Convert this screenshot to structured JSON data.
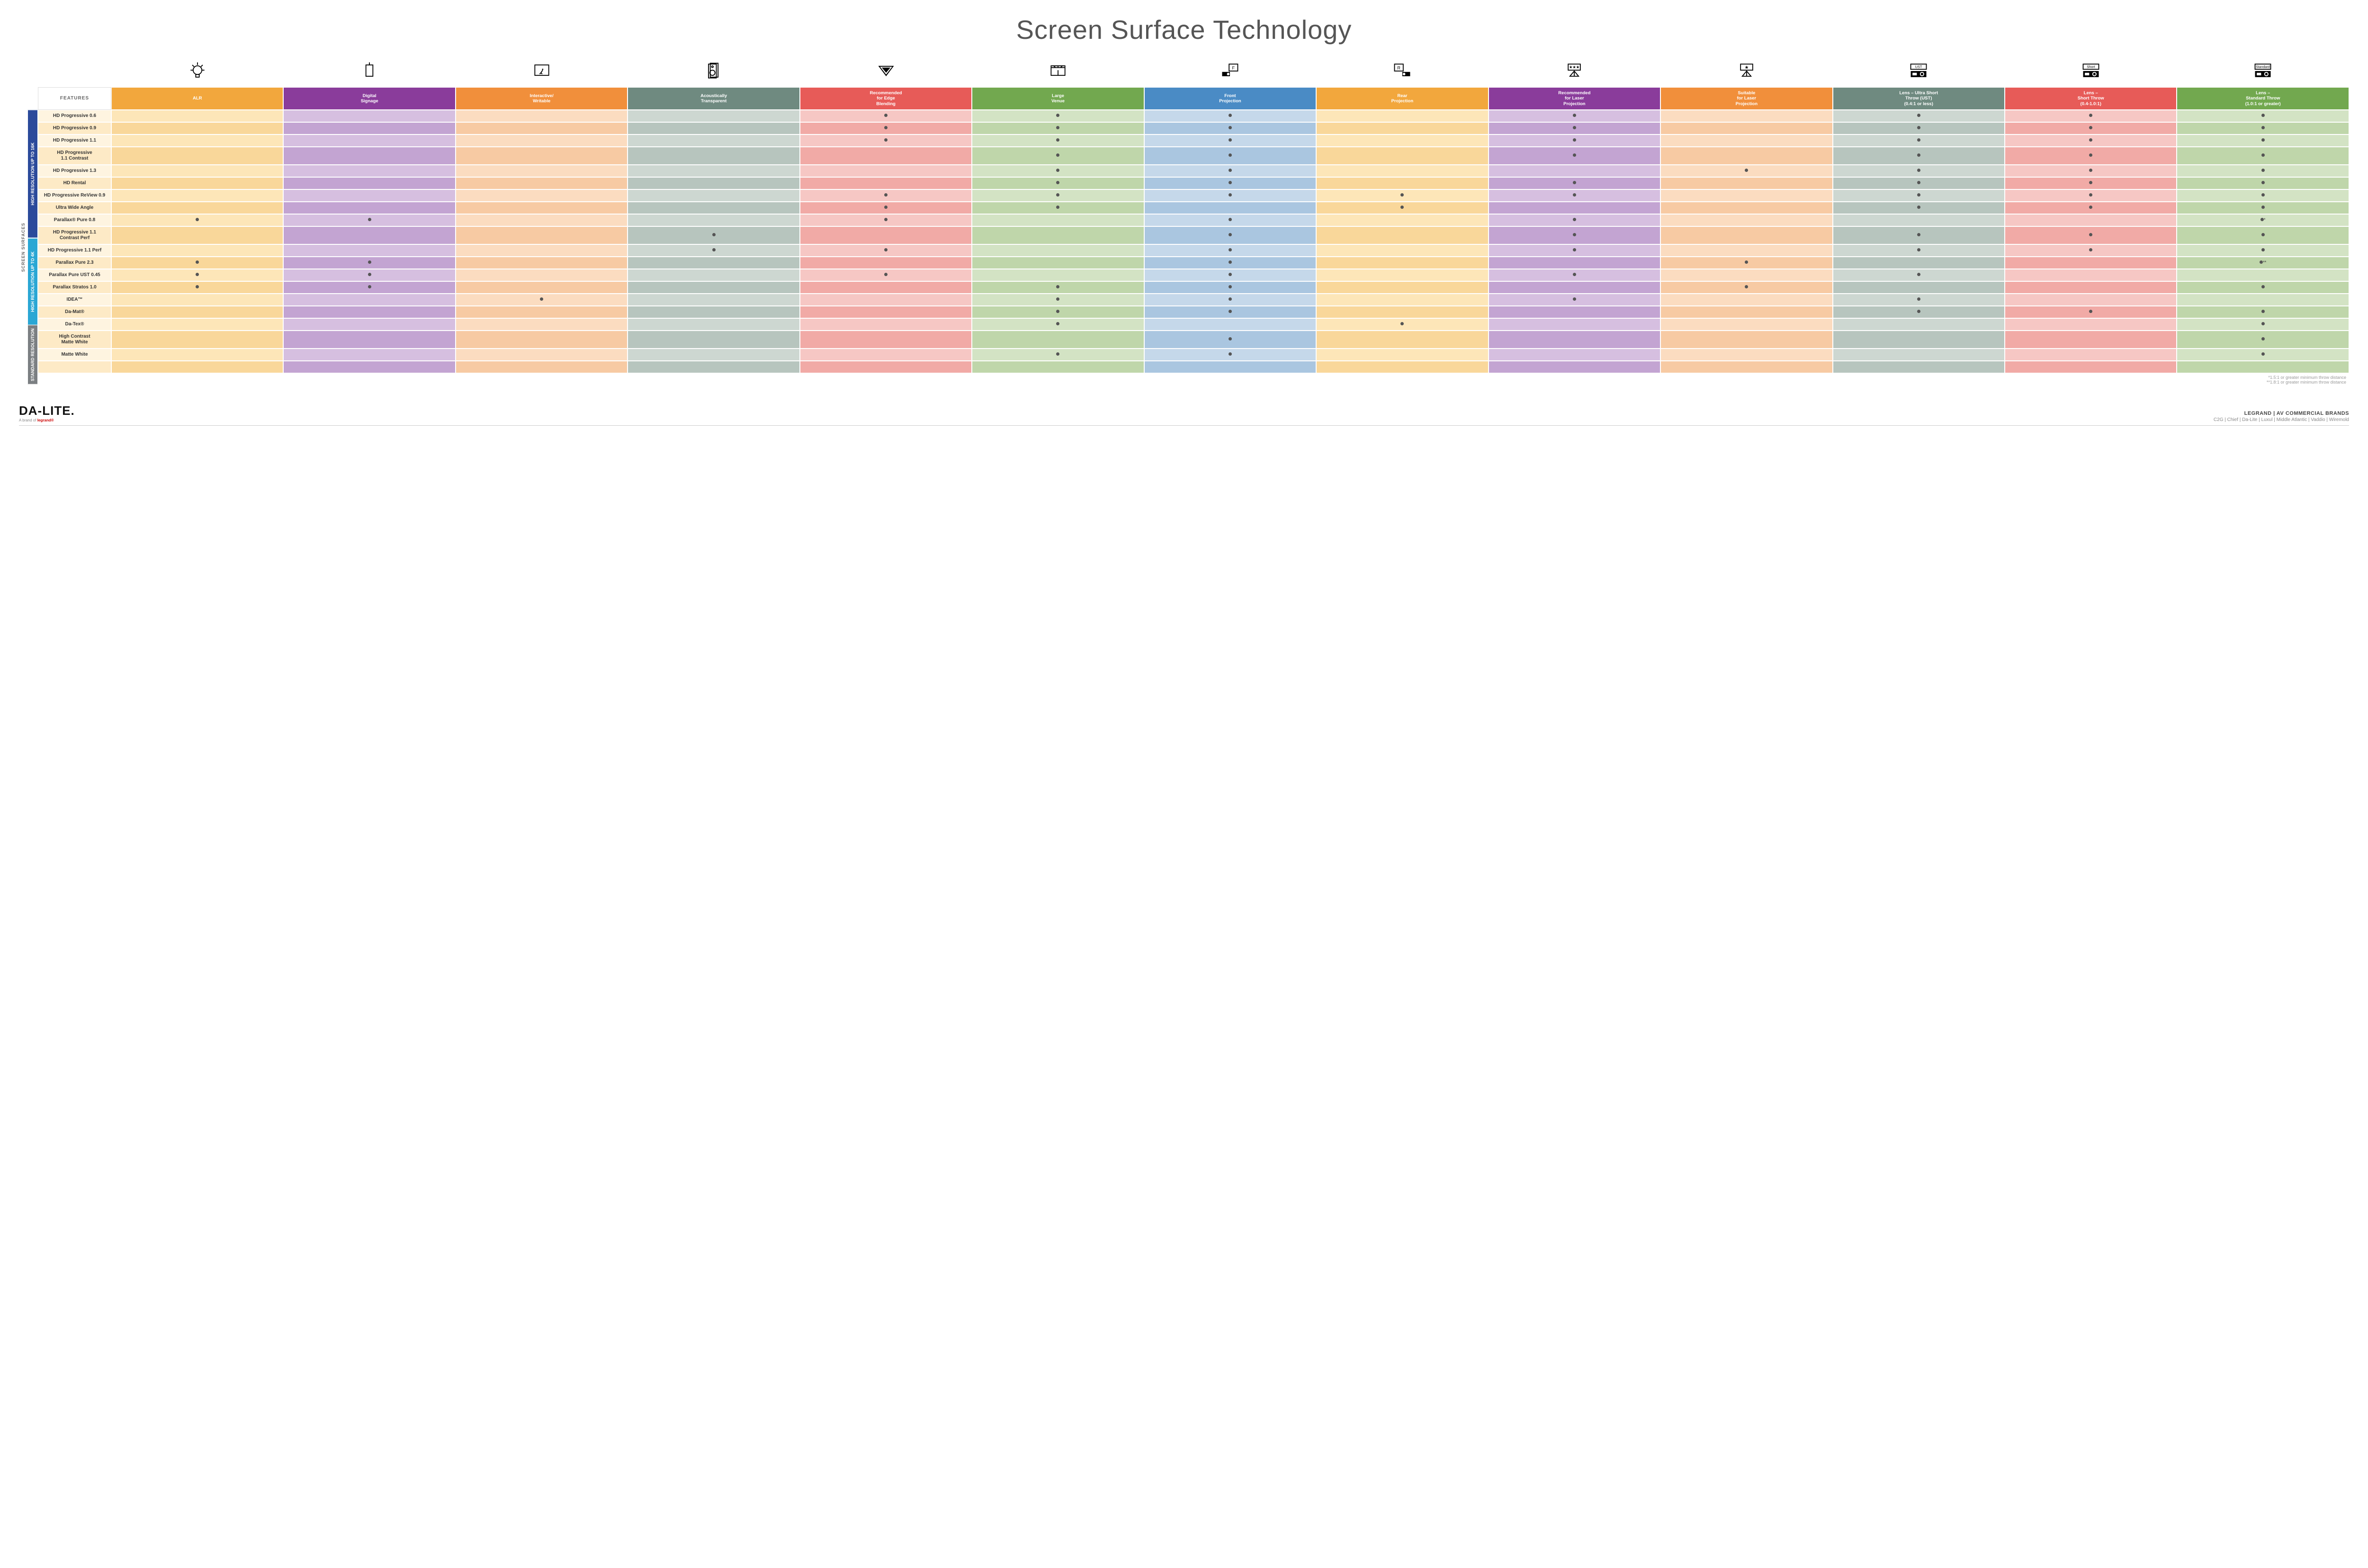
{
  "title": "Screen Surface Technology",
  "features_label": "FEATURES",
  "side_label_outer": "SCREEN SURFACES",
  "columns": [
    {
      "key": "alr",
      "label": "ALR",
      "color": "#f2a73d"
    },
    {
      "key": "digsig",
      "label": "Digital\nSignage",
      "color": "#8a3c9b"
    },
    {
      "key": "interactive",
      "label": "Interactive/\nWritable",
      "color": "#f18f3b"
    },
    {
      "key": "acoustic",
      "label": "Acoustically\nTransparent",
      "color": "#6f8a80"
    },
    {
      "key": "edge",
      "label": "Recommended\nfor Edge\nBlending",
      "color": "#e75b58"
    },
    {
      "key": "large",
      "label": "Large\nVenue",
      "color": "#72a84f"
    },
    {
      "key": "front",
      "label": "Front\nProjection",
      "color": "#4a8bc5"
    },
    {
      "key": "rear",
      "label": "Rear\nProjection",
      "color": "#f2a73d"
    },
    {
      "key": "reclaser",
      "label": "Recommended\nfor Laser\nProjection",
      "color": "#8a3c9b"
    },
    {
      "key": "suitlaser",
      "label": "Suitable\nfor Laser\nProjection",
      "color": "#f18f3b"
    },
    {
      "key": "ust",
      "label": "Lens – Ultra Short\nThrow (UST)\n(0.4:1 or less)",
      "color": "#6f8a80"
    },
    {
      "key": "short",
      "label": "Lens –\nShort Throw\n(0.4-1.0:1)",
      "color": "#e75b58"
    },
    {
      "key": "std",
      "label": "Lens –\nStandard Throw\n(1.0:1 or greater)",
      "color": "#72a84f"
    }
  ],
  "column_tints": {
    "alr": [
      "#fde6b8",
      "#f9d79a"
    ],
    "digsig": [
      "#d6bfe0",
      "#c3a4d2"
    ],
    "interactive": [
      "#fbdcc0",
      "#f7caa3"
    ],
    "acoustic": [
      "#cdd7d1",
      "#b7c5be"
    ],
    "edge": [
      "#f6c7c4",
      "#f1aaa6"
    ],
    "large": [
      "#d3e3c4",
      "#bfd6aa"
    ],
    "front": [
      "#c5d8ea",
      "#aac6e0"
    ],
    "rear": [
      "#fde6b8",
      "#f9d79a"
    ],
    "reclaser": [
      "#d6bfe0",
      "#c3a4d2"
    ],
    "suitlaser": [
      "#fbdcc0",
      "#f7caa3"
    ],
    "ust": [
      "#cdd7d1",
      "#b7c5be"
    ],
    "short": [
      "#f6c7c4",
      "#f1aaa6"
    ],
    "std": [
      "#d3e3c4",
      "#bfd6aa"
    ]
  },
  "row_label_tints": [
    "#fef4e0",
    "#fdeac6"
  ],
  "groups": [
    {
      "label": "HIGH RESOLUTION UP TO 16K",
      "color": "#2b4a9b",
      "rows": [
        {
          "name": "HD Progressive 0.6",
          "dots": {
            "edge": "•",
            "large": "•",
            "front": "•",
            "reclaser": "•",
            "ust": "•",
            "short": "•",
            "std": "•"
          }
        },
        {
          "name": "HD Progressive 0.9",
          "dots": {
            "edge": "•",
            "large": "•",
            "front": "•",
            "reclaser": "•",
            "ust": "•",
            "short": "•",
            "std": "•"
          }
        },
        {
          "name": "HD Progressive 1.1",
          "dots": {
            "edge": "•",
            "large": "•",
            "front": "•",
            "reclaser": "•",
            "ust": "•",
            "short": "•",
            "std": "•"
          }
        },
        {
          "name": "HD Progressive\n1.1 Contrast",
          "dots": {
            "large": "•",
            "front": "•",
            "reclaser": "•",
            "ust": "•",
            "short": "•",
            "std": "•"
          }
        },
        {
          "name": "HD Progressive 1.3",
          "dots": {
            "large": "•",
            "front": "•",
            "suitlaser": "•",
            "ust": "•",
            "short": "•",
            "std": "•"
          }
        },
        {
          "name": "HD Rental",
          "dots": {
            "large": "•",
            "front": "•",
            "reclaser": "•",
            "ust": "•",
            "short": "•",
            "std": "•"
          }
        },
        {
          "name": "HD Progressive ReView 0.9",
          "dots": {
            "edge": "•",
            "large": "•",
            "front": "•",
            "rear": "•",
            "reclaser": "•",
            "ust": "•",
            "short": "•",
            "std": "•"
          }
        },
        {
          "name": "Ultra Wide Angle",
          "dots": {
            "edge": "•",
            "large": "•",
            "rear": "•",
            "ust": "•",
            "short": "•",
            "std": "•"
          }
        },
        {
          "name": "Parallax® Pure 0.8",
          "dots": {
            "alr": "•",
            "digsig": "•",
            "edge": "•",
            "front": "•",
            "reclaser": "•",
            "std": "•*"
          }
        }
      ]
    },
    {
      "label": "HIGH RESOLUTION UP TO 4K",
      "color": "#2aa7d4",
      "rows": [
        {
          "name": "HD Progressive 1.1\nContrast Perf",
          "dots": {
            "acoustic": "•",
            "front": "•",
            "reclaser": "•",
            "ust": "•",
            "short": "•",
            "std": "•"
          }
        },
        {
          "name": "HD Progressive 1.1 Perf",
          "dots": {
            "acoustic": "•",
            "edge": "•",
            "front": "•",
            "reclaser": "•",
            "ust": "•",
            "short": "•",
            "std": "•"
          }
        },
        {
          "name": "Parallax Pure 2.3",
          "dots": {
            "alr": "•",
            "digsig": "•",
            "front": "•",
            "suitlaser": "•",
            "std": "•**"
          }
        },
        {
          "name": "Parallax Pure UST 0.45",
          "dots": {
            "alr": "•",
            "digsig": "•",
            "edge": "•",
            "front": "•",
            "reclaser": "•",
            "ust": "•"
          }
        },
        {
          "name": "Parallax Stratos 1.0",
          "dots": {
            "alr": "•",
            "digsig": "•",
            "large": "•",
            "front": "•",
            "suitlaser": "•",
            "std": "•"
          }
        },
        {
          "name": "IDEA™",
          "dots": {
            "interactive": "•",
            "large": "•",
            "front": "•",
            "reclaser": "•",
            "ust": "•"
          }
        }
      ]
    },
    {
      "label": "STANDARD\nRESOLUTION",
      "color": "#7b7f82",
      "rows": [
        {
          "name": "Da-Mat®",
          "dots": {
            "large": "•",
            "front": "•",
            "ust": "•",
            "short": "•",
            "std": "•"
          }
        },
        {
          "name": "Da-Tex®",
          "dots": {
            "large": "•",
            "rear": "•",
            "std": "•"
          }
        },
        {
          "name": "High Contrast\nMatte White",
          "dots": {
            "front": "•",
            "std": "•"
          }
        },
        {
          "name": "Matte White",
          "dots": {
            "large": "•",
            "front": "•",
            "std": "•"
          }
        }
      ]
    }
  ],
  "footnotes": [
    "*1.5:1 or greater minimum throw distance",
    "**1.8:1 or greater minimum throw distance"
  ],
  "footer": {
    "logo": "DA‑LITE.",
    "logo_sub_prefix": "A brand of ",
    "logo_sub_brand": "legrand®",
    "right_line1": "LEGRAND | AV COMMERCIAL BRANDS",
    "right_line2": "C2G  |  Chief  |  Da-Lite  |  Luxul  |  Middle Atlantic  |  Vaddio  |  Wiremold"
  },
  "icons": {
    "alr": "bulb",
    "digsig": "signage",
    "interactive": "touch",
    "acoustic": "speaker",
    "edge": "blend",
    "large": "venue",
    "front": "front",
    "rear": "rear",
    "reclaser": "laser3",
    "suitlaser": "laser1",
    "ust": "proj-ust",
    "short": "proj-short",
    "std": "proj-std"
  }
}
